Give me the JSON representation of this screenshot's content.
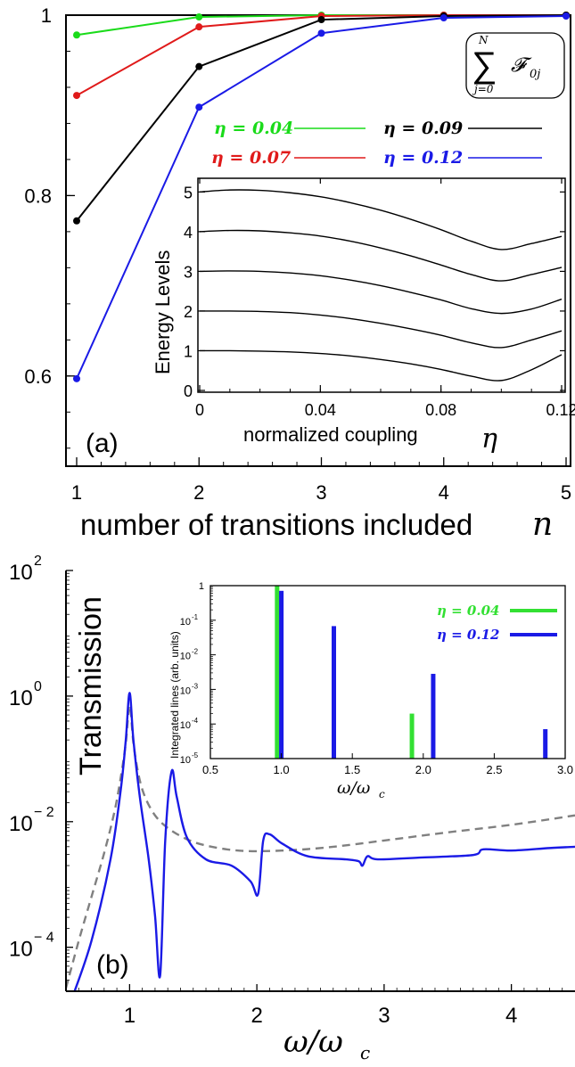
{
  "chart_data": [
    {
      "id": "a_main",
      "panel_label": "(a)",
      "type": "line",
      "xlabel_text": "number of transitions included",
      "xlabel_math": "n",
      "xlim": [
        1,
        5
      ],
      "ylim": [
        0.5,
        1.0
      ],
      "xticks": [
        1,
        2,
        3,
        4,
        5
      ],
      "yticks": [
        {
          "v": 0.6,
          "label": "0.6"
        },
        {
          "v": 0.8,
          "label": "0.8"
        },
        {
          "v": 1.0,
          "label": "1"
        }
      ],
      "formula_sum": "∑",
      "formula_top": "N",
      "formula_bottom": "j=0",
      "formula_term": "𝓕",
      "formula_sub": "0j",
      "x": [
        1,
        2,
        3,
        4,
        5
      ],
      "series": [
        {
          "name": "η = 0.04",
          "color": "#1adb1a",
          "values": [
            0.978,
            0.998,
            1.0,
            1.0,
            1.0
          ]
        },
        {
          "name": "η = 0.07",
          "color": "#e01a1a",
          "values": [
            0.911,
            0.987,
            0.999,
            1.0,
            1.0
          ]
        },
        {
          "name": "η = 0.09",
          "color": "#000000",
          "values": [
            0.772,
            0.943,
            0.995,
            0.999,
            1.0
          ]
        },
        {
          "name": "η = 0.12",
          "color": "#1a1ae6",
          "values": [
            0.597,
            0.898,
            0.98,
            0.997,
            0.999
          ]
        }
      ]
    },
    {
      "id": "a_inset",
      "type": "line",
      "xlabel": "normalized coupling",
      "xlabel_math": "η",
      "ylabel": "Energy Levels",
      "xlim": [
        0,
        0.12
      ],
      "ylim": [
        0,
        5.3
      ],
      "xticks": [
        {
          "v": 0,
          "label": "0"
        },
        {
          "v": 0.04,
          "label": "0.04"
        },
        {
          "v": 0.08,
          "label": "0.08"
        },
        {
          "v": 0.12,
          "label": "0.12"
        }
      ],
      "yticks": [
        0,
        1,
        2,
        3,
        4,
        5
      ],
      "x": [
        0,
        0.01,
        0.02,
        0.03,
        0.04,
        0.05,
        0.06,
        0.07,
        0.08,
        0.09,
        0.1,
        0.11,
        0.12
      ],
      "series": [
        {
          "values": [
            1.0,
            1.0,
            0.99,
            0.97,
            0.93,
            0.87,
            0.78,
            0.67,
            0.53,
            0.36,
            0.25,
            0.52,
            0.9
          ]
        },
        {
          "values": [
            2.0,
            2.0,
            1.99,
            1.96,
            1.9,
            1.81,
            1.69,
            1.55,
            1.39,
            1.2,
            1.08,
            1.27,
            1.5
          ]
        },
        {
          "values": [
            3.0,
            3.01,
            3.0,
            2.96,
            2.89,
            2.78,
            2.64,
            2.47,
            2.28,
            2.06,
            1.94,
            2.05,
            2.3
          ]
        },
        {
          "values": [
            4.0,
            4.03,
            4.02,
            3.97,
            3.89,
            3.76,
            3.59,
            3.39,
            3.16,
            2.92,
            2.76,
            2.92,
            3.1
          ]
        },
        {
          "values": [
            5.0,
            5.05,
            5.04,
            4.98,
            4.88,
            4.73,
            4.54,
            4.31,
            4.05,
            3.76,
            3.55,
            3.7,
            3.88
          ]
        }
      ]
    },
    {
      "id": "b_main",
      "panel_label": "(b)",
      "type": "line",
      "ylabel": "Transmission",
      "xlabel_math": "ω/ω_c",
      "xlabel_main": "ω/ω",
      "xlabel_sub": "c",
      "xlim": [
        0.5,
        4.5
      ],
      "ylog": true,
      "ylim_log10": [
        -4.7,
        2
      ],
      "xticks": [
        1,
        2,
        3,
        4
      ],
      "yticks": [
        {
          "exp": 2,
          "base": "10",
          "sup": "2"
        },
        {
          "exp": 0,
          "base": "10",
          "sup": "0"
        },
        {
          "exp": -2,
          "base": "10",
          "sup": "− 2"
        },
        {
          "exp": -4,
          "base": "10",
          "sup": "− 4"
        }
      ],
      "series": [
        {
          "style": "solid",
          "color": "#1a1ae6",
          "x": [
            0.55,
            0.7,
            0.85,
            0.93,
            0.97,
            1.0,
            1.03,
            1.08,
            1.15,
            1.2,
            1.24,
            1.28,
            1.33,
            1.37,
            1.45,
            1.6,
            1.8,
            1.95,
            2.01,
            2.05,
            2.1,
            2.2,
            2.4,
            2.7,
            2.8,
            2.83,
            2.87,
            2.95,
            3.3,
            3.7,
            3.78,
            4.0,
            4.3,
            4.5
          ],
          "log10y": [
            -4.8,
            -3.9,
            -2.6,
            -1.5,
            -0.7,
            0.05,
            -0.7,
            -1.6,
            -2.6,
            -3.5,
            -4.45,
            -2.3,
            -1.2,
            -1.6,
            -2.25,
            -2.6,
            -2.7,
            -2.95,
            -3.15,
            -2.3,
            -2.2,
            -2.35,
            -2.55,
            -2.6,
            -2.63,
            -2.7,
            -2.55,
            -2.6,
            -2.57,
            -2.53,
            -2.44,
            -2.46,
            -2.42,
            -2.4
          ]
        },
        {
          "style": "dashed",
          "color": "#808080",
          "x": [
            0.5,
            0.6,
            0.7,
            0.8,
            0.88,
            0.93,
            0.97,
            1.0,
            1.03,
            1.07,
            1.12,
            1.2,
            1.3,
            1.45,
            1.6,
            1.8,
            2.0,
            2.3,
            2.6,
            3.0,
            3.5,
            4.0,
            4.5
          ],
          "log10y": [
            -4.65,
            -3.9,
            -3.2,
            -2.5,
            -1.85,
            -1.3,
            -0.75,
            -0.15,
            -0.75,
            -1.25,
            -1.6,
            -1.9,
            -2.1,
            -2.28,
            -2.38,
            -2.45,
            -2.47,
            -2.45,
            -2.4,
            -2.3,
            -2.17,
            -2.05,
            -1.9
          ]
        }
      ]
    },
    {
      "id": "b_inset",
      "type": "bar",
      "ylabel": "Integrated lines (arb. units)",
      "xlabel_main": "ω/ω",
      "xlabel_sub": "c",
      "xlim": [
        0.5,
        3.0
      ],
      "ylog": true,
      "ylim_log10": [
        -5,
        0
      ],
      "xticks": [
        {
          "v": 0.5,
          "label": "0.5"
        },
        {
          "v": 1.0,
          "label": "1.0"
        },
        {
          "v": 1.5,
          "label": "1.5"
        },
        {
          "v": 2.0,
          "label": "2.0"
        },
        {
          "v": 2.5,
          "label": "2.5"
        },
        {
          "v": 3.0,
          "label": "3.0"
        }
      ],
      "yticks": [
        {
          "exp": 0,
          "base": "1",
          "sup": ""
        },
        {
          "exp": -1,
          "base": "10",
          "sup": "-1"
        },
        {
          "exp": -2,
          "base": "10",
          "sup": "-2"
        },
        {
          "exp": -3,
          "base": "10",
          "sup": "-3"
        },
        {
          "exp": -4,
          "base": "10",
          "sup": "-4"
        },
        {
          "exp": -5,
          "base": "10",
          "sup": "-5"
        }
      ],
      "series": [
        {
          "name": "η = 0.04",
          "color": "#33e033",
          "x": [
            0.97,
            1.92
          ],
          "log10y": [
            0.0,
            -3.7
          ]
        },
        {
          "name": "η = 0.12",
          "color": "#1a1ae6",
          "x": [
            1.0,
            1.37,
            2.07,
            2.86
          ],
          "log10y": [
            -0.15,
            -1.17,
            -2.55,
            -4.15
          ]
        }
      ]
    }
  ]
}
